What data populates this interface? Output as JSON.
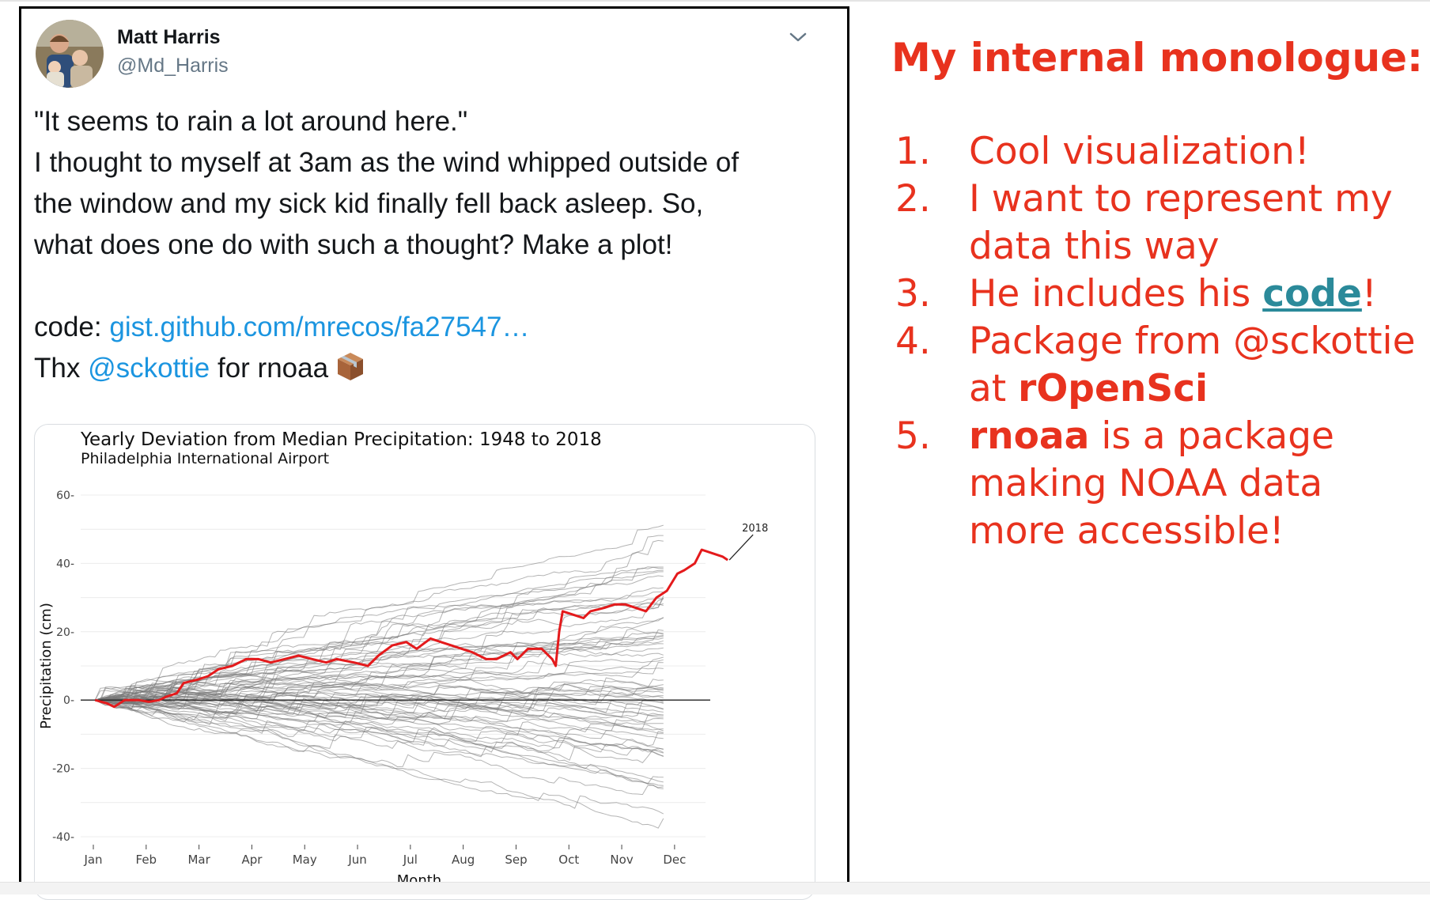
{
  "tweet": {
    "display_name": "Matt Harris",
    "handle": "@Md_Harris",
    "menu_icon": "chevron-down-icon",
    "avatar_icon": "avatar-photo",
    "lines": {
      "line1": "\"It seems to rain a lot around here.\"",
      "line2": "I thought to myself at 3am as the wind whipped outside of",
      "line3": "the window and my sick kid finally fell back asleep. So,",
      "line4": "what does one do with such a thought? Make a plot!"
    },
    "code_label": "code: ",
    "code_link": "gist.github.com/mrecos/fa27547…",
    "thanks_prefix": "Thx ",
    "mention": "@sckottie",
    "thanks_suffix": " for rnoaa",
    "emoji_icon": "package-icon"
  },
  "chart_data": {
    "type": "line",
    "title": "Yearly Deviation from Median Precipitation: 1948 to 2018",
    "subtitle": "Philadelphia International Airport",
    "xlabel": "Month",
    "ylabel": "Precipitation (cm)",
    "x_ticks": [
      "Jan",
      "Feb",
      "Mar",
      "Apr",
      "May",
      "Jun",
      "Jul",
      "Aug",
      "Sep",
      "Oct",
      "Nov",
      "Dec"
    ],
    "y_ticks": [
      "60",
      "40",
      "20",
      "0",
      "-20",
      "-40"
    ],
    "ylim": [
      -40,
      60
    ],
    "xlim": [
      0,
      365
    ],
    "grid": true,
    "highlight_label": "2018",
    "highlight_color": "#e41a1c",
    "background_series_color": "#777777",
    "background_series_count": 70,
    "highlight_series": {
      "name": "2018",
      "points": [
        [
          1,
          0
        ],
        [
          8,
          -1
        ],
        [
          12,
          -2
        ],
        [
          18,
          0
        ],
        [
          26,
          0
        ],
        [
          32,
          -0.5
        ],
        [
          38,
          0
        ],
        [
          42,
          1
        ],
        [
          48,
          2
        ],
        [
          52,
          5
        ],
        [
          60,
          6
        ],
        [
          66,
          7
        ],
        [
          72,
          9
        ],
        [
          80,
          10
        ],
        [
          88,
          12
        ],
        [
          95,
          12
        ],
        [
          102,
          11
        ],
        [
          110,
          12
        ],
        [
          118,
          13
        ],
        [
          126,
          12
        ],
        [
          134,
          11
        ],
        [
          140,
          12
        ],
        [
          150,
          11
        ],
        [
          158,
          10
        ],
        [
          164,
          13
        ],
        [
          172,
          16
        ],
        [
          180,
          17
        ],
        [
          186,
          15
        ],
        [
          194,
          18
        ],
        [
          200,
          17
        ],
        [
          206,
          16
        ],
        [
          212,
          15
        ],
        [
          218,
          14
        ],
        [
          226,
          12
        ],
        [
          232,
          12
        ],
        [
          240,
          14
        ],
        [
          244,
          12
        ],
        [
          250,
          15
        ],
        [
          258,
          15
        ],
        [
          264,
          12
        ],
        [
          266,
          10
        ],
        [
          268,
          20
        ],
        [
          270,
          26
        ],
        [
          276,
          25
        ],
        [
          282,
          24
        ],
        [
          286,
          26
        ],
        [
          294,
          27
        ],
        [
          300,
          28
        ],
        [
          306,
          28
        ],
        [
          312,
          27
        ],
        [
          318,
          26
        ],
        [
          324,
          30
        ],
        [
          330,
          32
        ],
        [
          336,
          37
        ],
        [
          340,
          38
        ],
        [
          346,
          40
        ],
        [
          350,
          44
        ],
        [
          356,
          43
        ],
        [
          362,
          42
        ],
        [
          365,
          41
        ]
      ]
    }
  },
  "monologue": {
    "title": "My internal monologue:",
    "items": [
      {
        "num": "1.",
        "text": "Cool visualization!"
      },
      {
        "num": "2.",
        "text": "I want to represent my data this way"
      },
      {
        "num": "3.",
        "pre": "He includes his ",
        "link": "code",
        "post": "!"
      },
      {
        "num": "4.",
        "pre": "Package from @sckottie at ",
        "bold": "rOpenSci"
      },
      {
        "num": "5.",
        "bold": "rnoaa",
        "post": " is a package making NOAA data more accessible!"
      }
    ]
  }
}
